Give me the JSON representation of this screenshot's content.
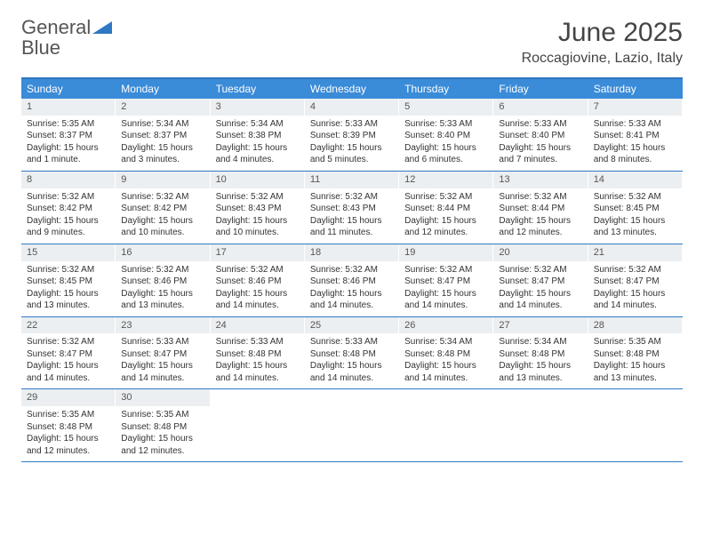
{
  "logo": {
    "text1": "General",
    "text2": "Blue"
  },
  "title": "June 2025",
  "location": "Roccagiovine, Lazio, Italy",
  "colors": {
    "headerBar": "#3a8bd8",
    "borderBlue": "#2f78c4",
    "dayNumBg": "#eceff1"
  },
  "weekdays": [
    "Sunday",
    "Monday",
    "Tuesday",
    "Wednesday",
    "Thursday",
    "Friday",
    "Saturday"
  ],
  "weeks": [
    [
      {
        "n": "1",
        "sr": "5:35 AM",
        "ss": "8:37 PM",
        "dl": "15 hours and 1 minute."
      },
      {
        "n": "2",
        "sr": "5:34 AM",
        "ss": "8:37 PM",
        "dl": "15 hours and 3 minutes."
      },
      {
        "n": "3",
        "sr": "5:34 AM",
        "ss": "8:38 PM",
        "dl": "15 hours and 4 minutes."
      },
      {
        "n": "4",
        "sr": "5:33 AM",
        "ss": "8:39 PM",
        "dl": "15 hours and 5 minutes."
      },
      {
        "n": "5",
        "sr": "5:33 AM",
        "ss": "8:40 PM",
        "dl": "15 hours and 6 minutes."
      },
      {
        "n": "6",
        "sr": "5:33 AM",
        "ss": "8:40 PM",
        "dl": "15 hours and 7 minutes."
      },
      {
        "n": "7",
        "sr": "5:33 AM",
        "ss": "8:41 PM",
        "dl": "15 hours and 8 minutes."
      }
    ],
    [
      {
        "n": "8",
        "sr": "5:32 AM",
        "ss": "8:42 PM",
        "dl": "15 hours and 9 minutes."
      },
      {
        "n": "9",
        "sr": "5:32 AM",
        "ss": "8:42 PM",
        "dl": "15 hours and 10 minutes."
      },
      {
        "n": "10",
        "sr": "5:32 AM",
        "ss": "8:43 PM",
        "dl": "15 hours and 10 minutes."
      },
      {
        "n": "11",
        "sr": "5:32 AM",
        "ss": "8:43 PM",
        "dl": "15 hours and 11 minutes."
      },
      {
        "n": "12",
        "sr": "5:32 AM",
        "ss": "8:44 PM",
        "dl": "15 hours and 12 minutes."
      },
      {
        "n": "13",
        "sr": "5:32 AM",
        "ss": "8:44 PM",
        "dl": "15 hours and 12 minutes."
      },
      {
        "n": "14",
        "sr": "5:32 AM",
        "ss": "8:45 PM",
        "dl": "15 hours and 13 minutes."
      }
    ],
    [
      {
        "n": "15",
        "sr": "5:32 AM",
        "ss": "8:45 PM",
        "dl": "15 hours and 13 minutes."
      },
      {
        "n": "16",
        "sr": "5:32 AM",
        "ss": "8:46 PM",
        "dl": "15 hours and 13 minutes."
      },
      {
        "n": "17",
        "sr": "5:32 AM",
        "ss": "8:46 PM",
        "dl": "15 hours and 14 minutes."
      },
      {
        "n": "18",
        "sr": "5:32 AM",
        "ss": "8:46 PM",
        "dl": "15 hours and 14 minutes."
      },
      {
        "n": "19",
        "sr": "5:32 AM",
        "ss": "8:47 PM",
        "dl": "15 hours and 14 minutes."
      },
      {
        "n": "20",
        "sr": "5:32 AM",
        "ss": "8:47 PM",
        "dl": "15 hours and 14 minutes."
      },
      {
        "n": "21",
        "sr": "5:32 AM",
        "ss": "8:47 PM",
        "dl": "15 hours and 14 minutes."
      }
    ],
    [
      {
        "n": "22",
        "sr": "5:32 AM",
        "ss": "8:47 PM",
        "dl": "15 hours and 14 minutes."
      },
      {
        "n": "23",
        "sr": "5:33 AM",
        "ss": "8:47 PM",
        "dl": "15 hours and 14 minutes."
      },
      {
        "n": "24",
        "sr": "5:33 AM",
        "ss": "8:48 PM",
        "dl": "15 hours and 14 minutes."
      },
      {
        "n": "25",
        "sr": "5:33 AM",
        "ss": "8:48 PM",
        "dl": "15 hours and 14 minutes."
      },
      {
        "n": "26",
        "sr": "5:34 AM",
        "ss": "8:48 PM",
        "dl": "15 hours and 14 minutes."
      },
      {
        "n": "27",
        "sr": "5:34 AM",
        "ss": "8:48 PM",
        "dl": "15 hours and 13 minutes."
      },
      {
        "n": "28",
        "sr": "5:35 AM",
        "ss": "8:48 PM",
        "dl": "15 hours and 13 minutes."
      }
    ],
    [
      {
        "n": "29",
        "sr": "5:35 AM",
        "ss": "8:48 PM",
        "dl": "15 hours and 12 minutes."
      },
      {
        "n": "30",
        "sr": "5:35 AM",
        "ss": "8:48 PM",
        "dl": "15 hours and 12 minutes."
      },
      null,
      null,
      null,
      null,
      null
    ]
  ],
  "labels": {
    "sunrise": "Sunrise: ",
    "sunset": "Sunset: ",
    "daylight": "Daylight: "
  }
}
